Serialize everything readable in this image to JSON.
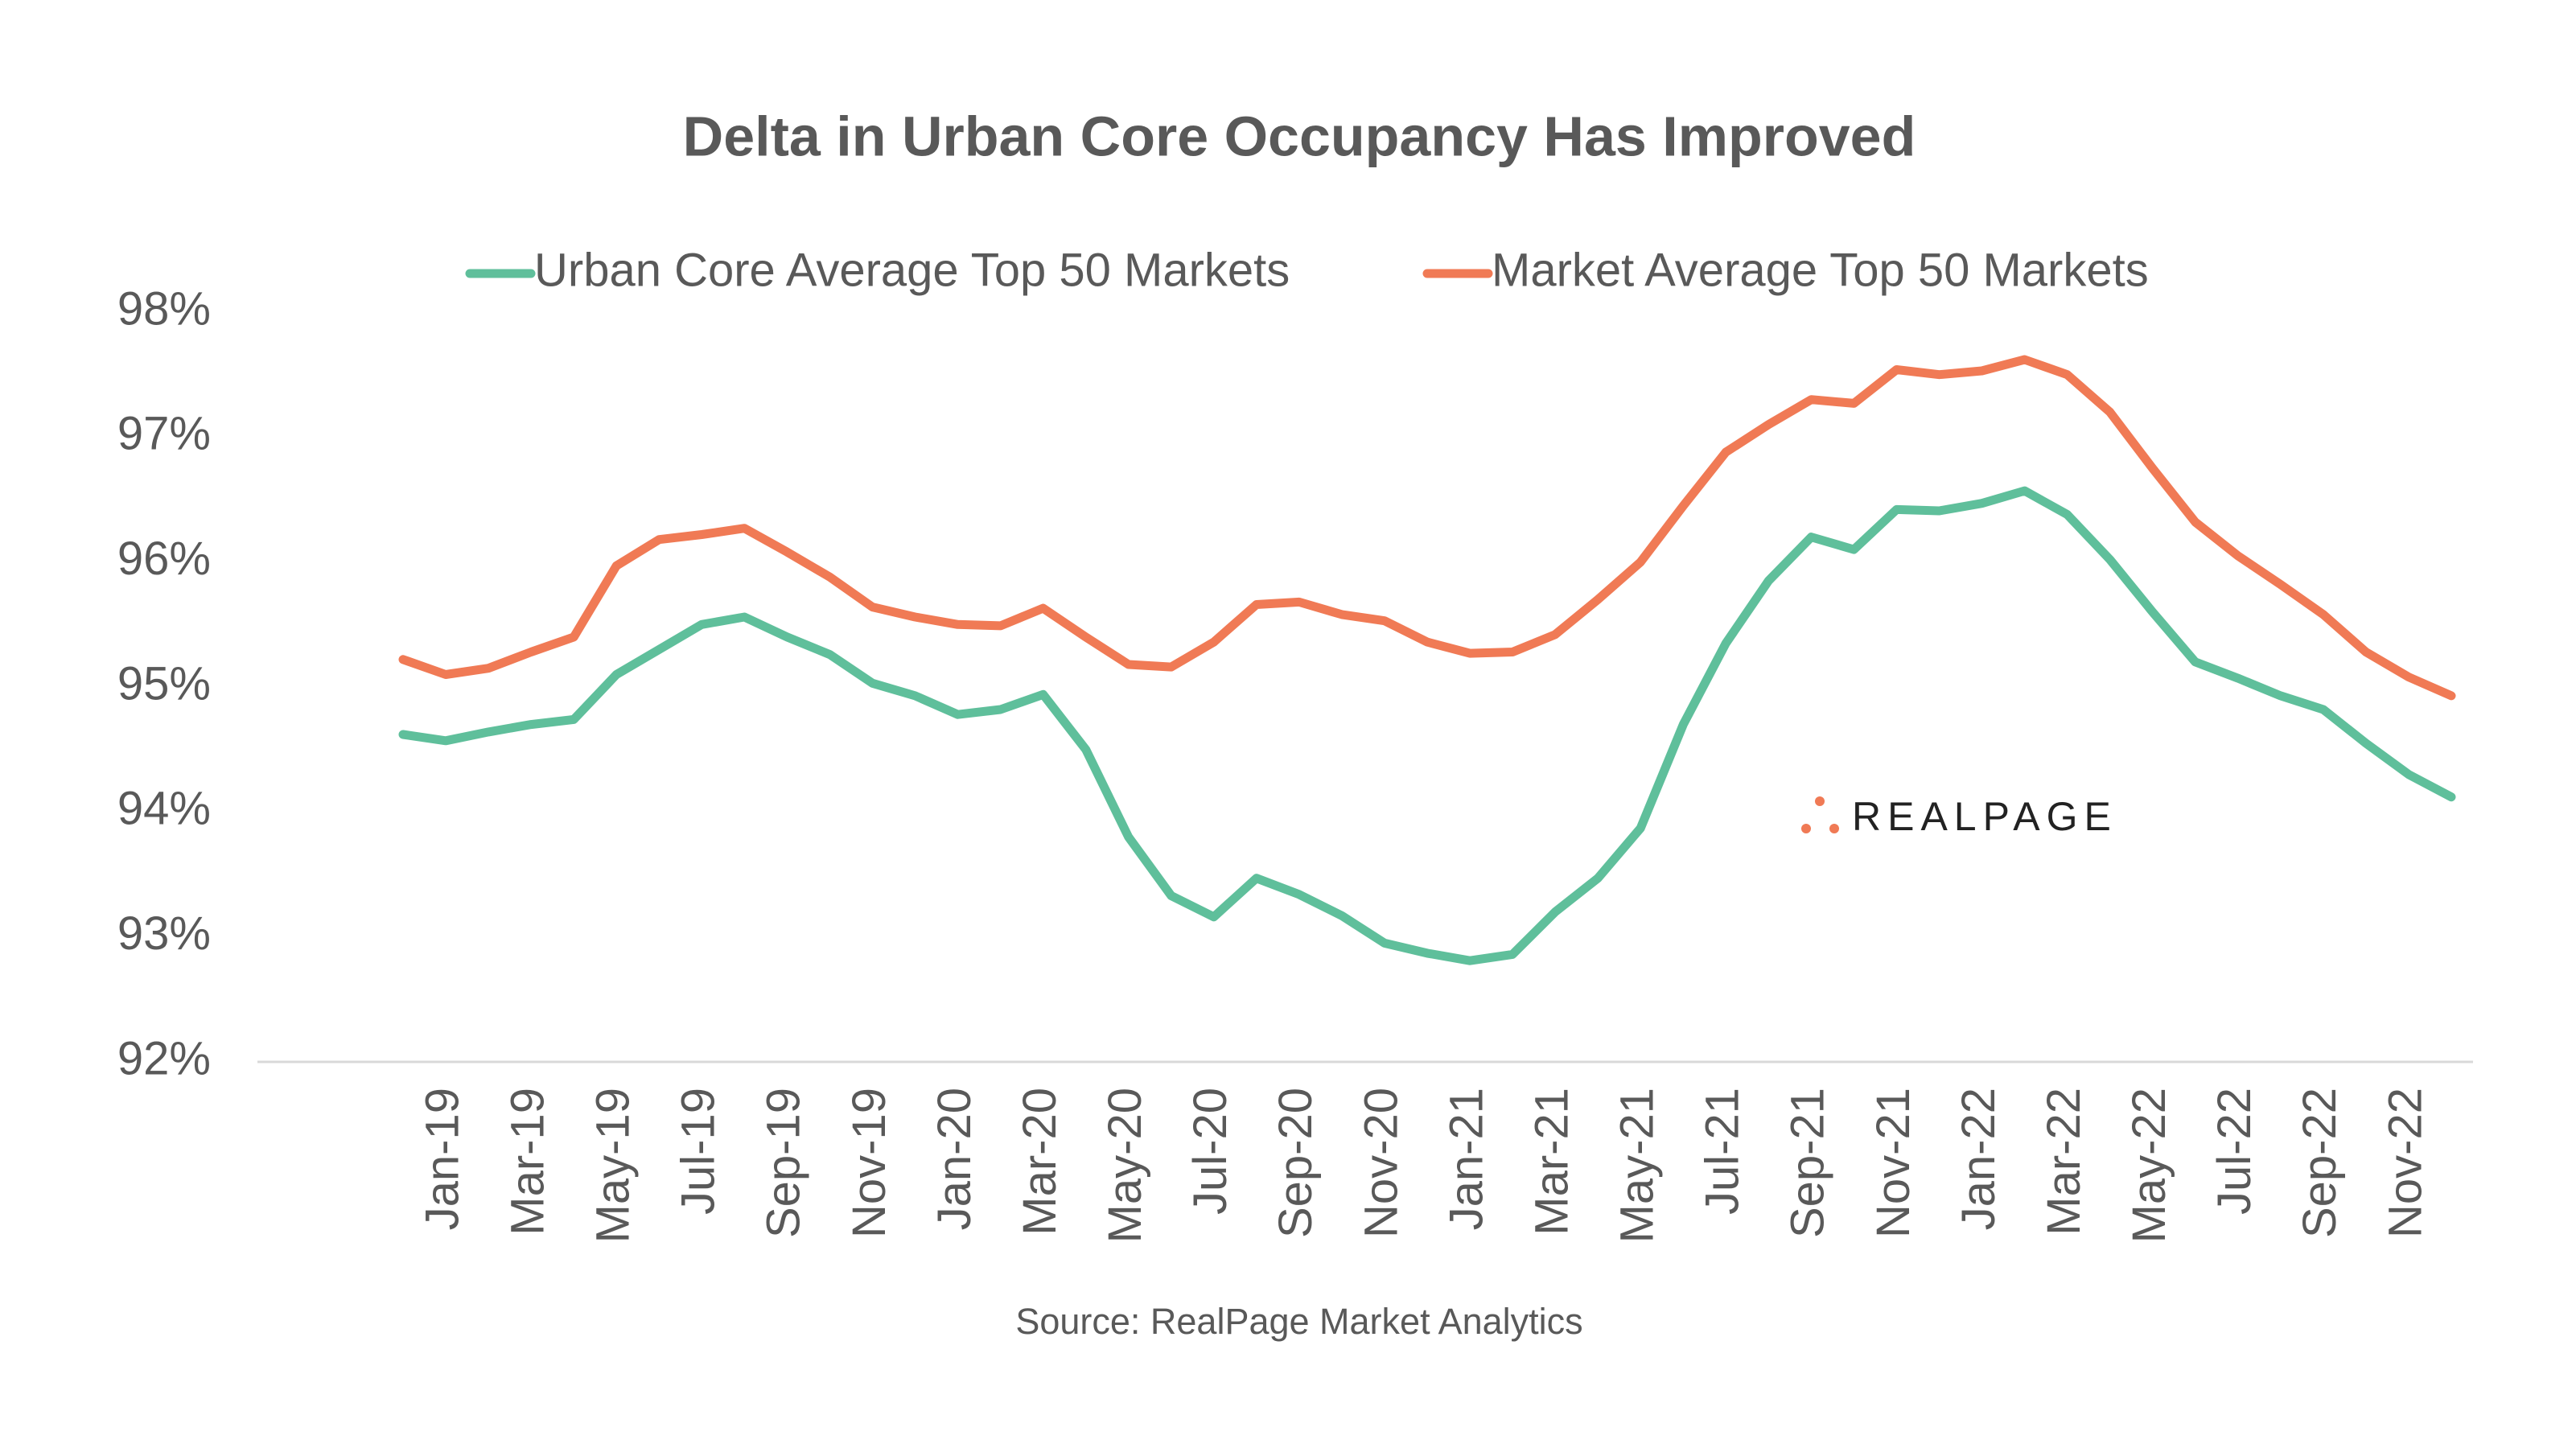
{
  "chart_data": {
    "type": "line",
    "title": "Delta in Urban Core Occupancy Has Improved",
    "source": "Source: RealPage Market Analytics",
    "logo": "REALPAGE",
    "categories": [
      null,
      "Jan-19",
      null,
      "Mar-19",
      null,
      "May-19",
      null,
      "Jul-19",
      null,
      "Sep-19",
      null,
      "Nov-19",
      null,
      "Jan-20",
      null,
      "Mar-20",
      null,
      "May-20",
      null,
      "Jul-20",
      null,
      "Sep-20",
      null,
      "Nov-20",
      null,
      "Jan-21",
      null,
      "Mar-21",
      null,
      "May-21",
      null,
      "Jul-21",
      null,
      "Sep-21",
      null,
      "Nov-21",
      null,
      "Jan-22",
      null,
      "Mar-22",
      null,
      "May-22",
      null,
      "Jul-22",
      null,
      "Sep-22",
      null,
      "Nov-22",
      null
    ],
    "series": [
      {
        "name": "Urban Core Average Top 50 Markets",
        "color": "#5fbf9b",
        "values": [
          94.62,
          94.57,
          94.64,
          94.7,
          94.74,
          95.1,
          95.3,
          95.5,
          95.56,
          95.4,
          95.26,
          95.03,
          94.93,
          94.78,
          94.82,
          94.94,
          94.5,
          93.8,
          93.33,
          93.16,
          93.47,
          93.34,
          93.17,
          92.95,
          92.87,
          92.81,
          92.86,
          93.2,
          93.47,
          93.87,
          94.7,
          95.35,
          95.85,
          96.2,
          96.1,
          96.42,
          96.41,
          96.47,
          96.57,
          96.38,
          96.02,
          95.6,
          95.2,
          95.07,
          94.93,
          94.82,
          94.55,
          94.3,
          94.12
        ]
      },
      {
        "name": "Market Average Top 50 Markets",
        "color": "#f07a55",
        "values": [
          95.22,
          95.1,
          95.15,
          95.28,
          95.4,
          95.97,
          96.18,
          96.22,
          96.27,
          96.08,
          95.88,
          95.64,
          95.56,
          95.5,
          95.49,
          95.63,
          95.4,
          95.18,
          95.16,
          95.36,
          95.66,
          95.68,
          95.58,
          95.53,
          95.36,
          95.27,
          95.28,
          95.42,
          95.7,
          96.0,
          96.45,
          96.88,
          97.1,
          97.3,
          97.27,
          97.54,
          97.5,
          97.53,
          97.62,
          97.5,
          97.2,
          96.75,
          96.32,
          96.05,
          95.82,
          95.58,
          95.28,
          95.08,
          94.93
        ]
      }
    ],
    "ylim": [
      92,
      98
    ],
    "yticks": [
      {
        "value": 92,
        "label": "92%"
      },
      {
        "value": 93,
        "label": "93%"
      },
      {
        "value": 94,
        "label": "94%"
      },
      {
        "value": 95,
        "label": "95%"
      },
      {
        "value": 96,
        "label": "96%"
      },
      {
        "value": 97,
        "label": "97%"
      },
      {
        "value": 98,
        "label": "98%"
      }
    ],
    "grid": false
  }
}
